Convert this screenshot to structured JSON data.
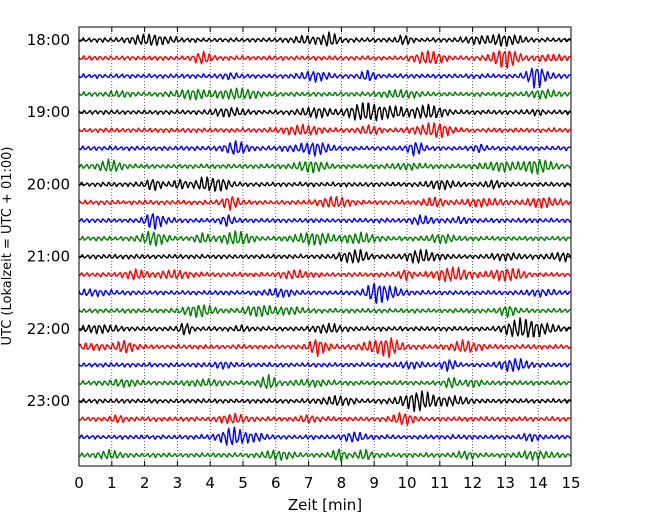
{
  "chart_data": {
    "type": "line",
    "title": "",
    "xlabel": "Zeit  [min]",
    "ylabel": "UTC (Lokalzeit = UTC + 01:00)",
    "xlim": [
      0,
      15
    ],
    "x_ticks": [
      "0",
      "1",
      "2",
      "3",
      "4",
      "5",
      "6",
      "7",
      "8",
      "9",
      "10",
      "11",
      "12",
      "13",
      "14",
      "15"
    ],
    "y_ticks": [
      {
        "label": "18:00",
        "row": 0
      },
      {
        "label": "19:00",
        "row": 4
      },
      {
        "label": "20:00",
        "row": 8
      },
      {
        "label": "21:00",
        "row": 12
      },
      {
        "label": "22:00",
        "row": 16
      },
      {
        "label": "23:00",
        "row": 20
      }
    ],
    "rows": 24,
    "row_interval_minutes": 15,
    "row_colors": [
      "#000000",
      "#ff0000",
      "#0000ff",
      "#008000"
    ],
    "grid": "vertical-dotted"
  }
}
